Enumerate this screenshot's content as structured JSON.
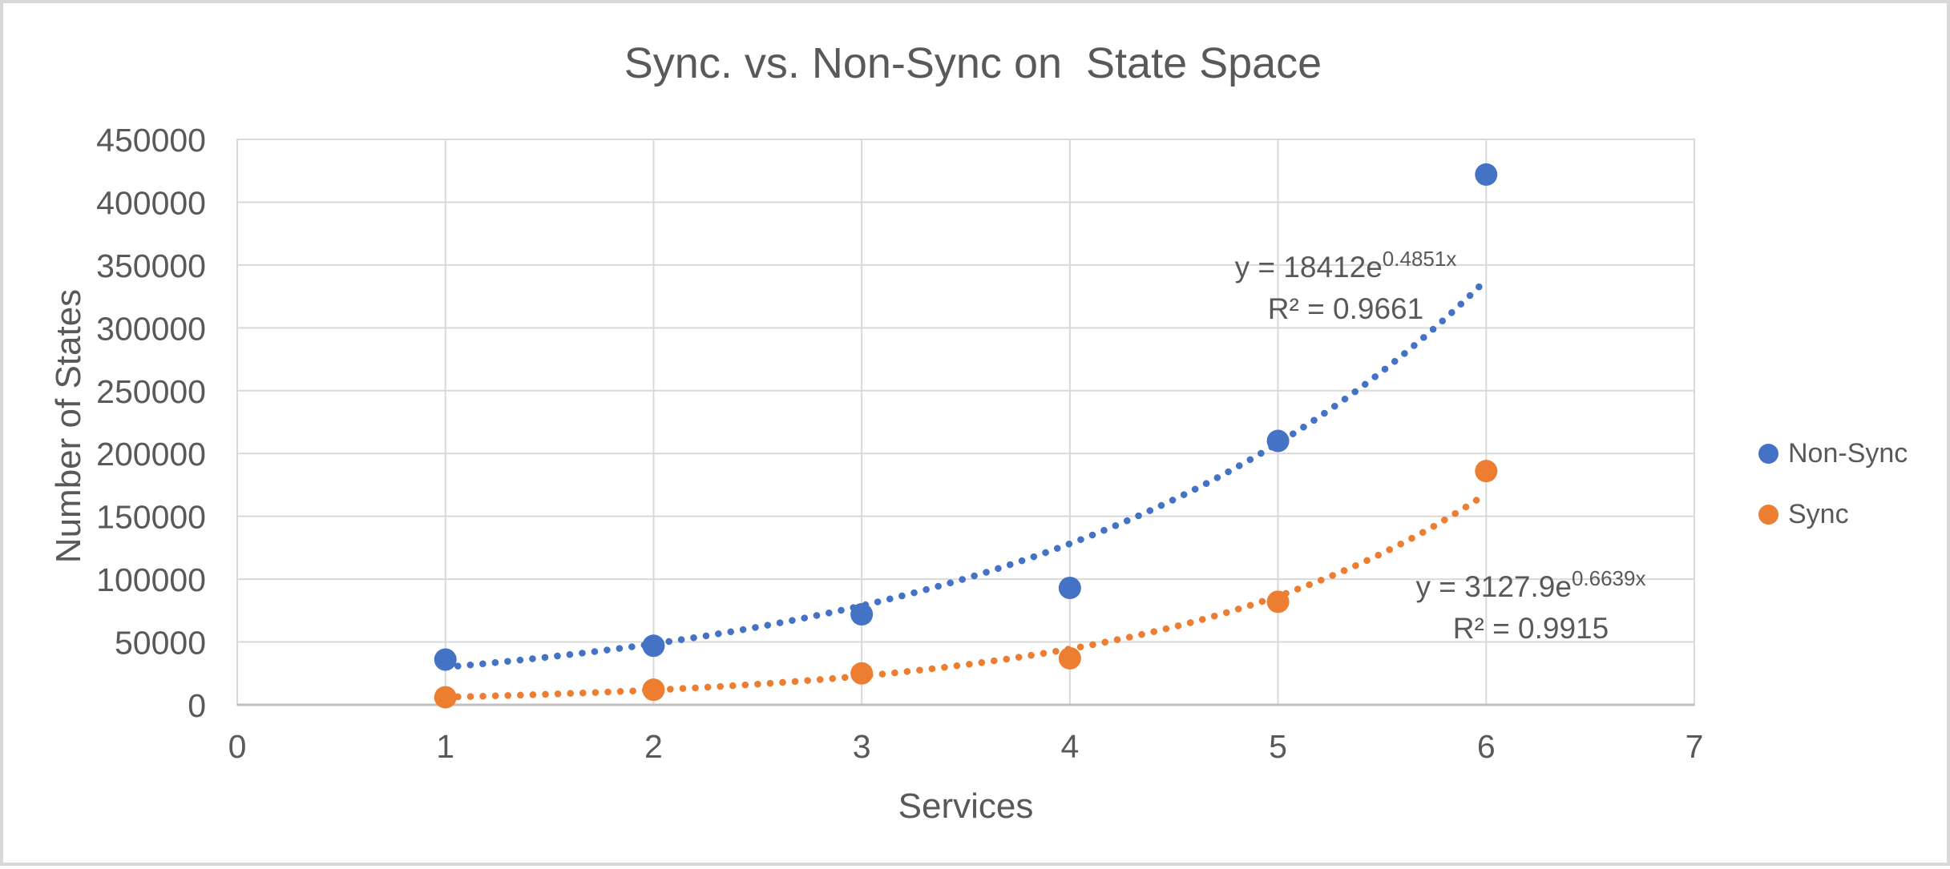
{
  "chart_data": {
    "type": "scatter",
    "title": "Sync. vs. Non-Sync on  State Space",
    "xlabel": "Services",
    "ylabel": "Number of States",
    "xlim": [
      0,
      7
    ],
    "ylim": [
      0,
      450000
    ],
    "x_ticks": [
      "0",
      "1",
      "2",
      "3",
      "4",
      "5",
      "6",
      "7"
    ],
    "y_ticks": [
      "0",
      "50000",
      "100000",
      "150000",
      "200000",
      "250000",
      "300000",
      "350000",
      "400000",
      "450000"
    ],
    "grid": true,
    "legend_position": "right",
    "x": [
      1,
      2,
      3,
      4,
      5,
      6
    ],
    "series": [
      {
        "name": "Non-Sync",
        "color": "#4472C4",
        "marker": "circle",
        "values": [
          36000,
          47000,
          72000,
          93000,
          210000,
          422000
        ],
        "trendline": {
          "type": "exponential",
          "style": "dotted",
          "a": 18412,
          "b": 0.4851,
          "x_range": [
            1,
            6
          ],
          "equation_base": "y = 18412e",
          "equation_exponent": "0.4851x",
          "r2": "R² = 0.9661"
        }
      },
      {
        "name": "Sync",
        "color": "#ED7D31",
        "marker": "circle",
        "values": [
          6000,
          12000,
          25000,
          37000,
          82000,
          186000
        ],
        "trendline": {
          "type": "exponential",
          "style": "dotted",
          "a": 3127.9,
          "b": 0.6639,
          "x_range": [
            1,
            6
          ],
          "equation_base": "y = 3127.9e",
          "equation_exponent": "0.6639x",
          "r2": "R² = 0.9915"
        }
      }
    ],
    "colors": {
      "grid": "#D9D9D9",
      "axis": "#BFBFBF",
      "text": "#595959",
      "frame_border": "#D8D8D8"
    }
  }
}
